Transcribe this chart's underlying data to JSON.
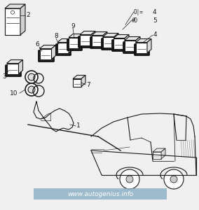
{
  "watermark": "www.autogenius.info",
  "watermark_color": "#8aaec5",
  "bg_color": "#f0f0f0",
  "line_color": "#1a1a1a",
  "label_color": "#111111",
  "label_fontsize": 6.5
}
